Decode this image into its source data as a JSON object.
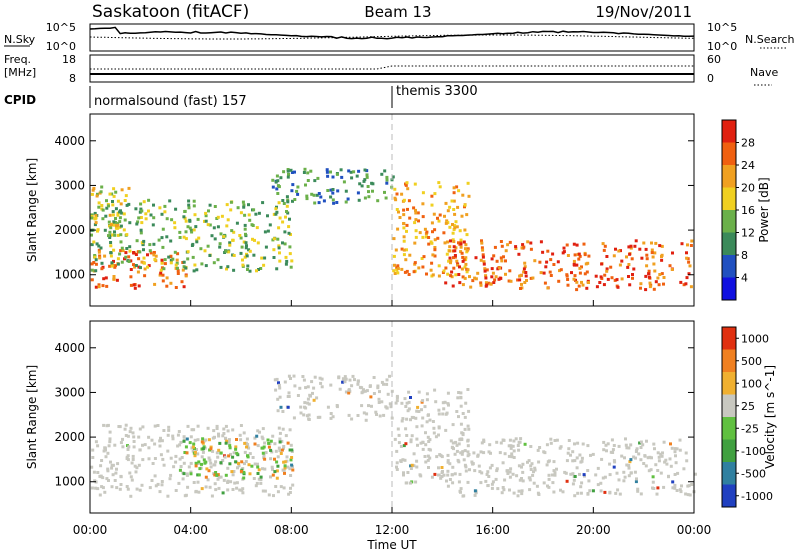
{
  "header": {
    "station": "Saskatoon (fitACF)",
    "beam": "Beam 13",
    "date": "19/Nov/2011"
  },
  "top_panels": {
    "nsky": {
      "label": "N.Sky",
      "ticks": [
        "10^5",
        "10^0"
      ],
      "right_label": "N.Search",
      "right_ticks": [
        "10^5",
        "10^0"
      ]
    },
    "freq": {
      "label_line1": "Freq.",
      "label_line2": "[MHz]",
      "ticks": [
        "18",
        "8"
      ],
      "right_label": "Nave",
      "right_ticks": [
        "60",
        "0"
      ]
    },
    "cpid": {
      "label": "CPID",
      "programs": [
        {
          "name": "normalsound (fast) 157",
          "start_hour": 0
        },
        {
          "name": "themis 3300",
          "start_hour": 12
        }
      ]
    }
  },
  "chart_data": [
    {
      "type": "heatmap",
      "name": "power_panel",
      "ylabel": "Slant Range [km]",
      "xlabel": "Time UT",
      "ylim": [
        300,
        4600
      ],
      "xlim": [
        0,
        24
      ],
      "yticks": [
        "4000",
        "3000",
        "2000",
        "1000"
      ],
      "xticks": [
        "00:00",
        "04:00",
        "08:00",
        "12:00",
        "16:00",
        "20:00",
        "00:00"
      ],
      "colorbar": {
        "label": "Power [dB]",
        "ticks": [
          "28",
          "24",
          "20",
          "16",
          "12",
          "8",
          "4"
        ],
        "colors": [
          "#1010e0",
          "#2050c0",
          "#3b8a5a",
          "#6bb04a",
          "#f0d020",
          "#f0a020",
          "#f06010",
          "#e02010"
        ]
      },
      "regions": [
        {
          "feature": "pre-noon low band",
          "t": [
            0,
            3.8
          ],
          "range": [
            700,
            1600
          ],
          "power_db": 24
        },
        {
          "feature": "pre-noon middle band",
          "t": [
            0,
            8
          ],
          "range": [
            1100,
            2700
          ],
          "power_db": 14
        },
        {
          "feature": "pre-noon upper patch",
          "t": [
            0,
            1.5
          ],
          "range": [
            1900,
            3000
          ],
          "power_db": 18
        },
        {
          "feature": "mid-day high-range echoes",
          "t": [
            7.2,
            12
          ],
          "range": [
            2600,
            3400
          ],
          "power_db": 10
        },
        {
          "feature": "afternoon descending band",
          "t": [
            12,
            15
          ],
          "range": [
            1000,
            3100
          ],
          "power_db": 22
        },
        {
          "feature": "afternoon/evening band",
          "t": [
            14,
            24
          ],
          "range": [
            700,
            1800
          ],
          "power_db": 26
        }
      ]
    },
    {
      "type": "heatmap",
      "name": "velocity_panel",
      "ylabel": "Slant Range [km]",
      "xlabel": "Time UT",
      "ylim": [
        300,
        4600
      ],
      "xlim": [
        0,
        24
      ],
      "yticks": [
        "4000",
        "3000",
        "2000",
        "1000"
      ],
      "xticks": [
        "00:00",
        "04:00",
        "08:00",
        "12:00",
        "16:00",
        "20:00",
        "00:00"
      ],
      "colorbar": {
        "label": "Velocity [m s^-1]",
        "ticks": [
          "1000",
          "500",
          "100",
          "25",
          "-25",
          "-100",
          "-500",
          "-1000"
        ],
        "colors": [
          "#2040c0",
          "#3080a0",
          "#40a040",
          "#60c040",
          "#c8c8c0",
          "#f0b030",
          "#f08020",
          "#e03010"
        ]
      },
      "regions": [
        {
          "feature": "ground scatter low band",
          "t": [
            0,
            8
          ],
          "range": [
            700,
            2300
          ],
          "velocity": 0
        },
        {
          "feature": "ionospheric scatter",
          "t": [
            3.5,
            8
          ],
          "range": [
            1100,
            2000
          ],
          "velocity": 150
        },
        {
          "feature": "mid-day high-range ground scatter",
          "t": [
            7.2,
            12
          ],
          "range": [
            2400,
            3400
          ],
          "velocity": 0
        },
        {
          "feature": "afternoon descending ground scatter",
          "t": [
            12,
            15
          ],
          "range": [
            1000,
            3100
          ],
          "velocity": 0
        },
        {
          "feature": "afternoon/evening ground scatter",
          "t": [
            14,
            24
          ],
          "range": [
            700,
            2000
          ],
          "velocity": 0
        }
      ]
    }
  ]
}
